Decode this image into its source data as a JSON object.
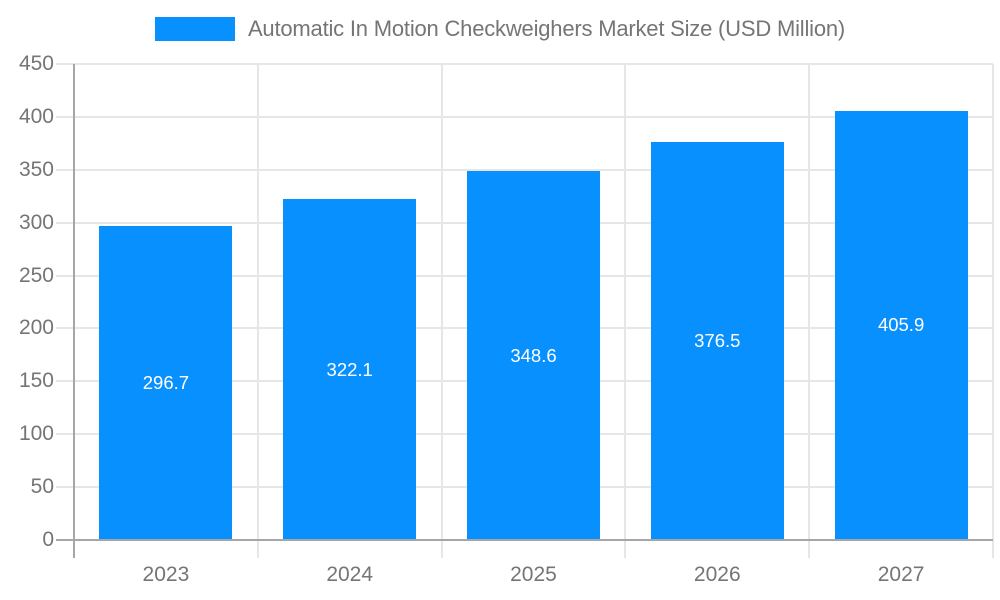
{
  "chart_data": {
    "type": "bar",
    "title": "Automatic In Motion Checkweighers Market Size (USD Million)",
    "categories": [
      "2023",
      "2024",
      "2025",
      "2026",
      "2027"
    ],
    "values": [
      296.7,
      322.1,
      348.6,
      376.5,
      405.9
    ],
    "value_labels": [
      "296.7",
      "322.1",
      "348.6",
      "376.5",
      "405.9"
    ],
    "ylim": [
      0,
      450
    ],
    "ytick_step": 50,
    "yticks": [
      0,
      50,
      100,
      150,
      200,
      250,
      300,
      350,
      400,
      450
    ],
    "grid": true,
    "legend_position": "top",
    "colors": {
      "bar": "#0990ff",
      "bar_value_text": "#ffffff",
      "gridline": "#e6e6e6",
      "axis_line": "#a6a6a6",
      "tick_text": "#757575",
      "legend_text": "#757575",
      "background": "#ffffff"
    }
  }
}
